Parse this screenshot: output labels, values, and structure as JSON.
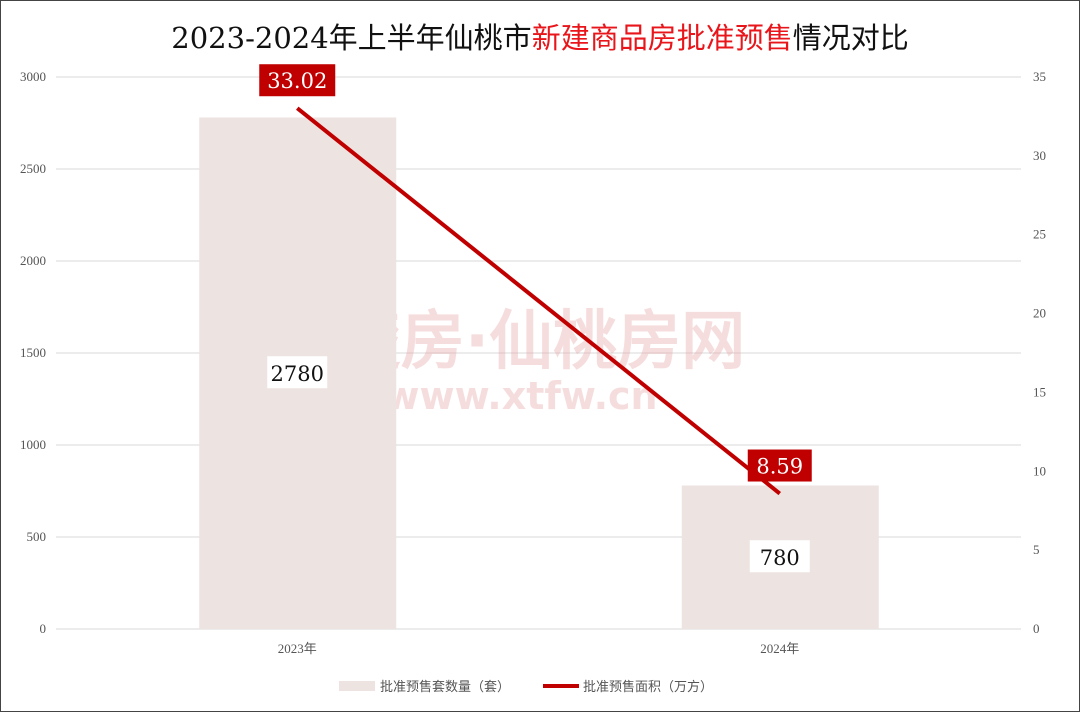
{
  "title": {
    "part1": "2023-2024年上半年仙桃市",
    "part2": "新建商品房批准预售",
    "part3": "情况对比"
  },
  "watermark": {
    "line1": "楚房·仙桃房网",
    "line2": "www.xtfw.cn"
  },
  "colors": {
    "bar": "#ede3e1",
    "line": "#c00000",
    "label_bg": "#c00000",
    "title_highlight": "#e8161b"
  },
  "chart_data": {
    "type": "bar+line",
    "title": "2023-2024年上半年仙桃市新建商品房批准预售情况对比",
    "categories": [
      "2023年",
      "2024年"
    ],
    "series": [
      {
        "name": "批准预售套数量（套）",
        "type": "bar",
        "axis": "left",
        "values": [
          2780,
          780
        ]
      },
      {
        "name": "批准预售面积（万方）",
        "type": "line",
        "axis": "right",
        "values": [
          33.02,
          8.59
        ]
      }
    ],
    "y_left": {
      "range": [
        0,
        3000
      ],
      "ticks": [
        0,
        500,
        1000,
        1500,
        2000,
        2500,
        3000
      ]
    },
    "y_right": {
      "range": [
        0,
        35
      ],
      "ticks": [
        0,
        5,
        10,
        15,
        20,
        25,
        30,
        35
      ]
    },
    "grid": true,
    "legend": "bottom"
  }
}
